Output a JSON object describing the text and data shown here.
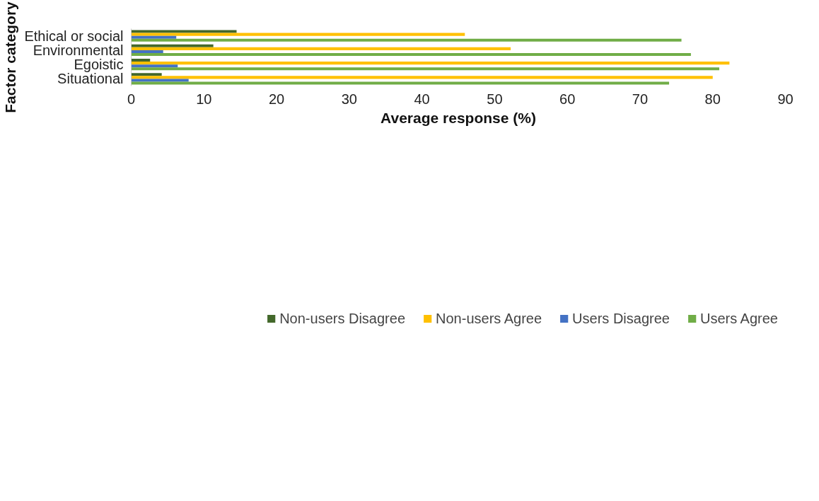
{
  "chart_data": {
    "type": "bar",
    "orientation": "horizontal",
    "xlabel": "Average response (%)",
    "ylabel": "Factor category",
    "categories": [
      "Ethical or social",
      "Environmental",
      "Egoistic",
      "Situational"
    ],
    "series": [
      {
        "name": "Non-users Disagree",
        "color": "#43682b",
        "values": [
          14.5,
          11.3,
          2.6,
          4.2
        ]
      },
      {
        "name": "Non-users Agree",
        "color": "#ffc000",
        "values": [
          45.9,
          52.2,
          82.3,
          80.0
        ]
      },
      {
        "name": "Users Disagree",
        "color": "#4472c4",
        "values": [
          6.2,
          4.4,
          6.4,
          7.9
        ]
      },
      {
        "name": "Users Agree",
        "color": "#70ad47",
        "values": [
          75.7,
          77.0,
          80.9,
          74.0
        ]
      }
    ],
    "xlim": [
      0,
      90
    ],
    "xticks": [
      0,
      10,
      20,
      30,
      40,
      50,
      60,
      70,
      80,
      90
    ],
    "grid": false,
    "legend": "bottom"
  }
}
